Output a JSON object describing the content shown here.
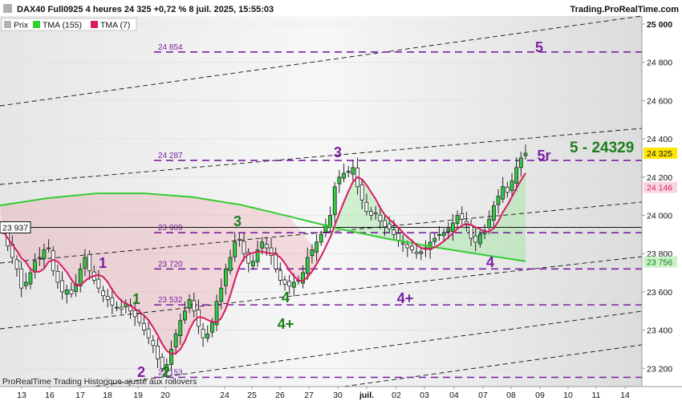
{
  "header": {
    "title": "DAX40 Full0925 4 heures 24 325 +0,72 % 8 juil. 2025, 15:55:03",
    "brand": "Trading.ProRealTime.com"
  },
  "legend": [
    {
      "label": "Prix",
      "color": "#b0b0b0"
    },
    {
      "label": "TMA (155)",
      "color": "#33cc33"
    },
    {
      "label": "TMA (7)",
      "color": "#d81b60"
    }
  ],
  "footer": "ProRealTime Trading  Historique ajusté aux rollovers",
  "price_badges": {
    "left": "23 937",
    "last": "24 325",
    "tma7": "24 146",
    "tma155": "23 756"
  },
  "target_text": "5 - 24329",
  "colors": {
    "bull": "#2ecc40",
    "bear": "#ffffff",
    "tma155": "#33cc33",
    "tma7": "#d81b60",
    "level": "#7b1fa2",
    "wave_green": "#1b7f1b"
  },
  "chart_data": {
    "type": "candlestick",
    "ylim": [
      23080,
      25000
    ],
    "y_ticks": [
      "25 000",
      "24 800",
      "24 600",
      "24 400",
      "24 200",
      "24 000",
      "23 800",
      "23 600",
      "23 400",
      "23 200"
    ],
    "y_tick_values": [
      25000,
      24800,
      24600,
      24400,
      24200,
      24000,
      23800,
      23600,
      23400,
      23200
    ],
    "x_ticks": [
      "13",
      "16",
      "17",
      "18",
      "19",
      "20",
      "24",
      "25",
      "26",
      "27",
      "30",
      "juil.",
      "02",
      "03",
      "04",
      "07",
      "08",
      "09",
      "10",
      "11",
      "14"
    ],
    "levels": [
      {
        "label": "24 854",
        "value": 24854
      },
      {
        "label": "24 287",
        "value": 24287
      },
      {
        "label": "23 909",
        "value": 23909
      },
      {
        "label": "23 720",
        "value": 23720
      },
      {
        "label": "23 532",
        "value": 23532
      },
      {
        "label": "23 153",
        "value": 23153
      }
    ],
    "horizontal_line": 23937,
    "wave_labels": [
      {
        "text": "1",
        "color": "purple"
      },
      {
        "text": "2",
        "color": "purple"
      },
      {
        "text": "3",
        "color": "purple"
      },
      {
        "text": "4",
        "color": "purple"
      },
      {
        "text": "4+",
        "color": "purple"
      },
      {
        "text": "5",
        "color": "purple"
      },
      {
        "text": "5r",
        "color": "purple"
      },
      {
        "text": "1",
        "color": "green"
      },
      {
        "text": "2",
        "color": "green"
      },
      {
        "text": "3",
        "color": "green"
      },
      {
        "text": "4",
        "color": "green"
      },
      {
        "text": "4+",
        "color": "green"
      }
    ],
    "closes": [
      23920,
      23840,
      23780,
      23720,
      23620,
      23650,
      23700,
      23760,
      23780,
      23820,
      23830,
      23710,
      23650,
      23600,
      23610,
      23590,
      23640,
      23720,
      23780,
      23710,
      23660,
      23620,
      23580,
      23560,
      23530,
      23520,
      23510,
      23540,
      23500,
      23470,
      23440,
      23400,
      23360,
      23320,
      23250,
      23200,
      23220,
      23300,
      23380,
      23450,
      23500,
      23560,
      23500,
      23420,
      23360,
      23380,
      23440,
      23550,
      23620,
      23720,
      23780,
      23860,
      23870,
      23800,
      23750,
      23760,
      23820,
      23860,
      23830,
      23790,
      23720,
      23660,
      23640,
      23630,
      23650,
      23660,
      23700,
      23780,
      23820,
      23860,
      23900,
      23950,
      24000,
      24150,
      24200,
      24220,
      24230,
      24250,
      24150,
      24080,
      24020,
      24000,
      24010,
      23970,
      23940,
      23930,
      23900,
      23870,
      23850,
      23830,
      23820,
      23800,
      23810,
      23830,
      23860,
      23880,
      23900,
      23910,
      23930,
      23960,
      24000,
      23980,
      23950,
      23880,
      23860,
      23900,
      23920,
      23980,
      24050,
      24100,
      24150,
      24120,
      24180,
      24250,
      24300,
      24325
    ]
  }
}
